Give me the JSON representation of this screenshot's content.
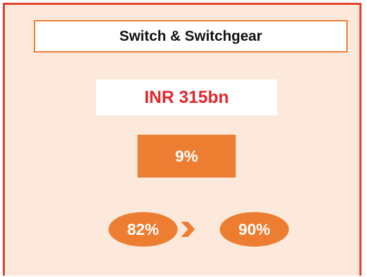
{
  "card": {
    "title": "Switch & Switchgear",
    "market_size": "INR 315bn",
    "growth": "9%",
    "share_from": "82%",
    "share_to": "90%"
  }
}
